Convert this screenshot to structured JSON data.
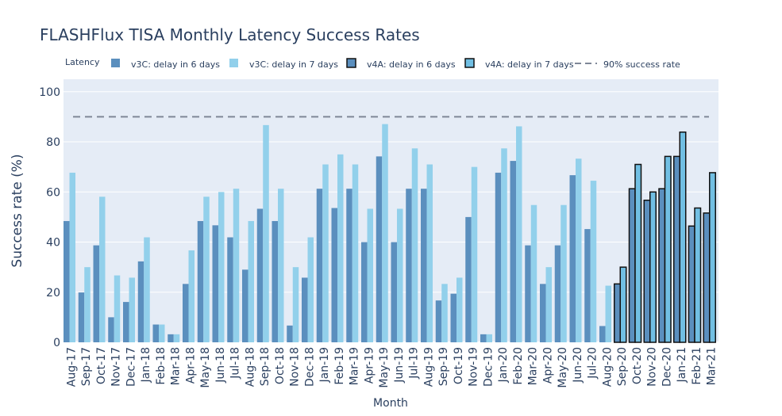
{
  "chart_data": {
    "type": "bar",
    "title": "FLASHFlux TISA Monthly Latency Success Rates",
    "xlabel": "Month",
    "ylabel": "Success rate (%)",
    "ylim": [
      0,
      105
    ],
    "yticks": [
      0,
      20,
      40,
      60,
      80,
      100
    ],
    "grid": true,
    "legend_title": "Latency",
    "legend_position": "top",
    "categories": [
      "Aug-17",
      "Sep-17",
      "Oct-17",
      "Nov-17",
      "Dec-17",
      "Jan-18",
      "Feb-18",
      "Mar-18",
      "Apr-18",
      "May-18",
      "Jun-18",
      "Jul-18",
      "Aug-18",
      "Sep-18",
      "Oct-18",
      "Nov-18",
      "Dec-18",
      "Jan-19",
      "Feb-19",
      "Mar-19",
      "Apr-19",
      "May-19",
      "Jun-19",
      "Jul-19",
      "Aug-19",
      "Sep-19",
      "Oct-19",
      "Nov-19",
      "Dec-19",
      "Jan-20",
      "Feb-20",
      "Mar-20",
      "Apr-20",
      "May-20",
      "Jun-20",
      "Jul-20",
      "Aug-20",
      "Sep-20",
      "Oct-20",
      "Nov-20",
      "Dec-20",
      "Jan-21",
      "Feb-21",
      "Mar-21"
    ],
    "series": [
      {
        "name": "v3C: delay in 6 days",
        "color": "#5b8fbe",
        "outlined": false,
        "values": [
          48.4,
          19.9,
          38.7,
          10.0,
          16.1,
          32.3,
          7.1,
          3.2,
          23.3,
          48.4,
          46.7,
          41.9,
          29.0,
          53.3,
          48.4,
          6.7,
          25.8,
          61.3,
          53.6,
          61.3,
          40.0,
          74.2,
          40.0,
          61.3,
          61.3,
          16.7,
          19.4,
          50.0,
          3.2,
          67.7,
          72.4,
          38.7,
          23.3,
          38.7,
          66.7,
          45.2,
          6.5,
          null,
          null,
          null,
          null,
          null,
          null,
          null
        ]
      },
      {
        "name": "v3C: delay in 7 days",
        "color": "#92d0eb",
        "outlined": false,
        "values": [
          67.7,
          30.0,
          58.1,
          26.7,
          25.8,
          41.9,
          7.1,
          3.2,
          36.7,
          58.1,
          60.0,
          61.3,
          48.4,
          86.7,
          61.3,
          30.0,
          41.9,
          71.0,
          75.0,
          71.0,
          53.3,
          87.1,
          53.3,
          77.4,
          71.0,
          23.3,
          25.8,
          70.0,
          3.2,
          77.4,
          86.2,
          54.8,
          30.0,
          54.8,
          73.3,
          64.5,
          22.6,
          null,
          null,
          null,
          null,
          null,
          null,
          null
        ]
      },
      {
        "name": "v4A: delay in 6 days",
        "color": "#5b8fbe",
        "outlined": true,
        "values": [
          null,
          null,
          null,
          null,
          null,
          null,
          null,
          null,
          null,
          null,
          null,
          null,
          null,
          null,
          null,
          null,
          null,
          null,
          null,
          null,
          null,
          null,
          null,
          null,
          null,
          null,
          null,
          null,
          null,
          null,
          null,
          null,
          null,
          null,
          null,
          null,
          null,
          23.3,
          61.3,
          56.7,
          61.3,
          74.2,
          46.4,
          51.6
        ]
      },
      {
        "name": "v4A: delay in 7 days",
        "color": "#71bfe3",
        "outlined": true,
        "values": [
          null,
          null,
          null,
          null,
          null,
          null,
          null,
          null,
          null,
          null,
          null,
          null,
          null,
          null,
          null,
          null,
          null,
          null,
          null,
          null,
          null,
          null,
          null,
          null,
          null,
          null,
          null,
          null,
          null,
          null,
          null,
          null,
          null,
          null,
          null,
          null,
          null,
          30.0,
          71.0,
          60.0,
          74.2,
          83.9,
          53.6,
          67.7
        ]
      }
    ],
    "reference_line": {
      "name": "90% success rate",
      "value": 90,
      "color": "#7f8797",
      "dash": "dashed"
    }
  }
}
